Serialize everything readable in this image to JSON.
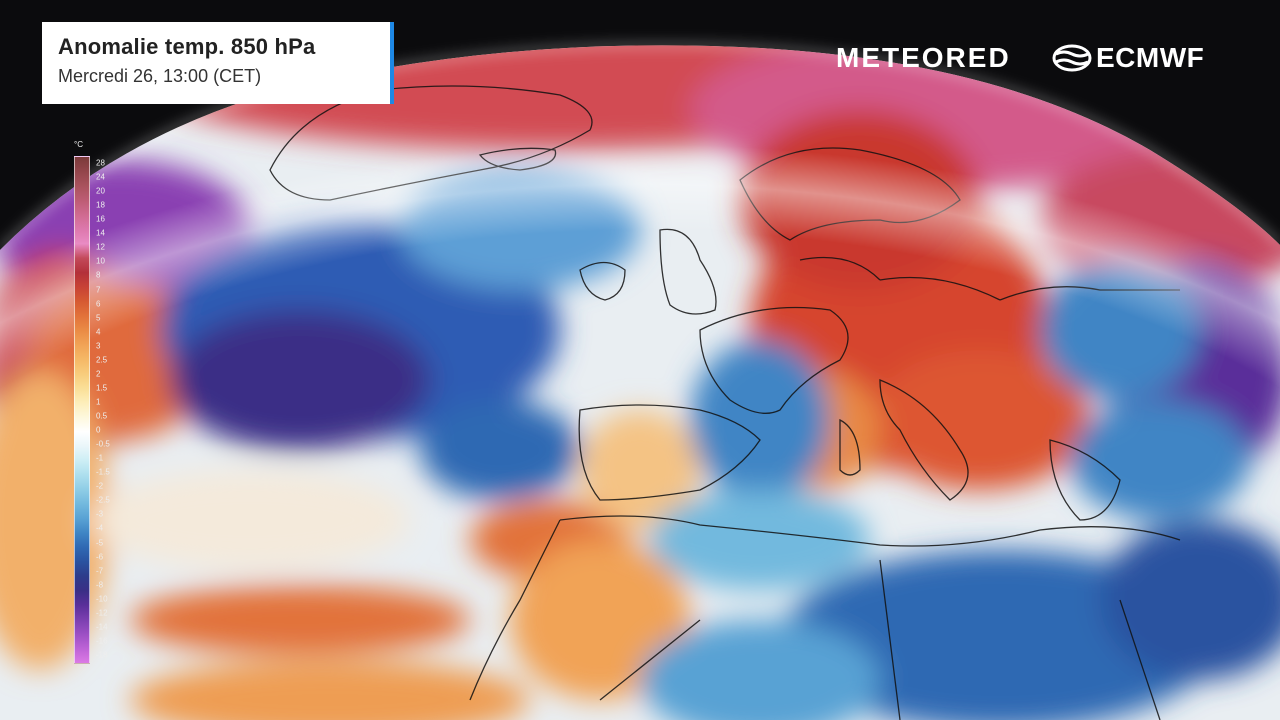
{
  "header": {
    "title": "Anomalie temp. 850 hPa",
    "subtitle": "Mercredi 26, 13:00 (CET)"
  },
  "brands": {
    "meteored": "METEORED",
    "ecmwf": "ECMWF"
  },
  "legend": {
    "unit": "°C",
    "ticks": [
      "28",
      "24",
      "20",
      "18",
      "16",
      "14",
      "12",
      "10",
      "8",
      "7",
      "6",
      "5",
      "4",
      "3",
      "2.5",
      "2",
      "1.5",
      "1",
      "0.5",
      "0",
      "-0.5",
      "-1",
      "-1.5",
      "-2",
      "-2.5",
      "-3",
      "-4",
      "-5",
      "-6",
      "-7",
      "-8",
      "-10",
      "-12",
      "-14",
      "-16",
      "-18"
    ],
    "colors": [
      "#7a3a3a",
      "#93454b",
      "#a9525d",
      "#bd5c74",
      "#cf6a90",
      "#dd78ad",
      "#e98bc4",
      "#c34a5a",
      "#b3303a",
      "#c84235",
      "#d65a32",
      "#e2723a",
      "#ea8b45",
      "#f1a356",
      "#f5b866",
      "#f8cc7c",
      "#fadf97",
      "#fdeeba",
      "#fdf8dd",
      "#ffffff",
      "#eaf6fa",
      "#cdeef5",
      "#addfee",
      "#8fcde6",
      "#72b9de",
      "#59a2d4",
      "#3f85c5",
      "#2f69b3",
      "#2952a0",
      "#2d3c8b",
      "#3a2f86",
      "#5a2f9a",
      "#7b3fb0",
      "#9c4fc4",
      "#bd63d6",
      "#dc7ae5"
    ]
  },
  "map": {
    "description_colors": {
      "ocean_warm": "#e0683c",
      "ocean_cold": "#3058b0",
      "neutral": "#f5f2ea",
      "space": "#0b0b0d"
    }
  }
}
